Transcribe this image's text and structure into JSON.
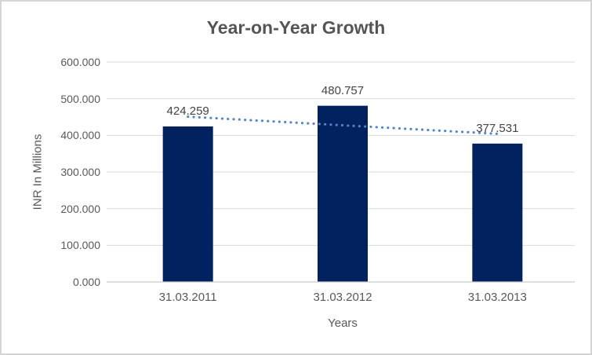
{
  "chart_data": {
    "type": "bar",
    "title": "Year-on-Year Growth",
    "xlabel": "Years",
    "ylabel": "INR In Millions",
    "categories": [
      "31.03.2011",
      "31.03.2012",
      "31.03.2013"
    ],
    "values": [
      424.259,
      480.757,
      377.531
    ],
    "value_labels": [
      "424.259",
      "480.757",
      "377.531"
    ],
    "ylim": [
      0,
      600
    ],
    "ytick_interval": 100,
    "ytick_labels": [
      "0.000",
      "100.000",
      "200.000",
      "300.000",
      "400.000",
      "500.000",
      "600.000"
    ],
    "grid": true,
    "legend": "none",
    "trendline": {
      "type": "linear",
      "style": "dotted"
    },
    "colors": {
      "bar": "#02215f",
      "trendline": "#4f86c6",
      "gridline": "#d9d9d9",
      "axis_line": "#c9c9c9",
      "tick_text": "#595959",
      "title_text": "#555555",
      "data_label_text": "#444444",
      "background": "#ffffff",
      "border": "#d5d5d5"
    }
  }
}
